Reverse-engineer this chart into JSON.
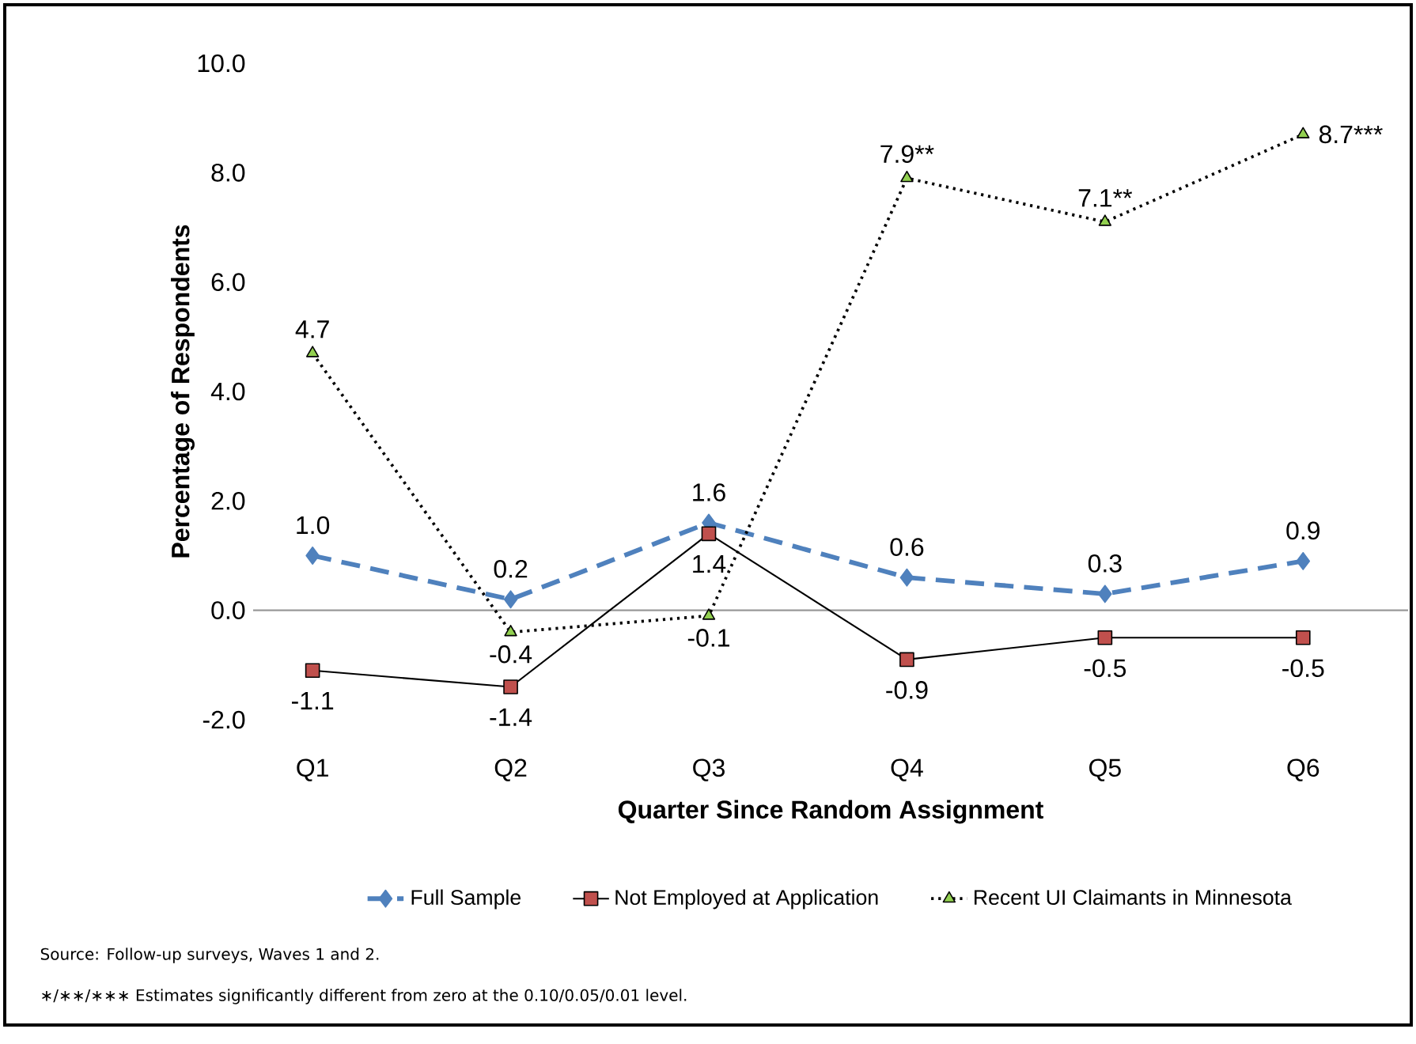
{
  "chart_data": {
    "type": "line",
    "categories": [
      "Q1",
      "Q2",
      "Q3",
      "Q4",
      "Q5",
      "Q6"
    ],
    "xlabel": "Quarter Since Random Assignment",
    "ylabel": "Percentage of Respondents",
    "ylim": [
      -2.0,
      10.0
    ],
    "yticks": [
      {
        "value": -2,
        "label": "-2.0"
      },
      {
        "value": 0,
        "label": "0.0"
      },
      {
        "value": 2,
        "label": "2.0"
      },
      {
        "value": 4,
        "label": "4.0"
      },
      {
        "value": 6,
        "label": "6.0"
      },
      {
        "value": 8,
        "label": "8.0"
      },
      {
        "value": 10,
        "label": "10.0"
      }
    ],
    "legend": "bottom",
    "series": [
      {
        "name": "Full Sample",
        "color": "#4f81bd",
        "marker": "diamond",
        "line_style": "dashed",
        "values": [
          1.0,
          0.2,
          1.6,
          0.6,
          0.3,
          0.9
        ],
        "value_labels": [
          "1.0",
          "0.2",
          "1.6",
          "0.6",
          "0.3",
          "0.9"
        ]
      },
      {
        "name": "Not Employed at Application",
        "color": "#c0504d",
        "marker": "square",
        "line_style": "solid",
        "values": [
          -1.1,
          -1.4,
          1.4,
          -0.9,
          -0.5,
          -0.5
        ],
        "value_labels": [
          "-1.1",
          "-1.4",
          "1.4",
          "-0.9",
          "-0.5",
          "-0.5"
        ]
      },
      {
        "name": "Recent UI Claimants in Minnesota",
        "color": "#92d050",
        "marker": "triangle",
        "line_style": "dotted",
        "values": [
          4.7,
          -0.4,
          -0.1,
          7.9,
          7.1,
          8.7
        ],
        "value_labels": [
          "4.7",
          "-0.4",
          "-0.1",
          "7.9**",
          "7.1**",
          "8.7***"
        ]
      }
    ],
    "annotations": [
      "Source: Follow-up surveys, Waves 1 and 2.",
      "∗/∗∗/∗∗∗ Estimates significantly different from zero at the 0.10/0.05/0.01 level."
    ]
  }
}
